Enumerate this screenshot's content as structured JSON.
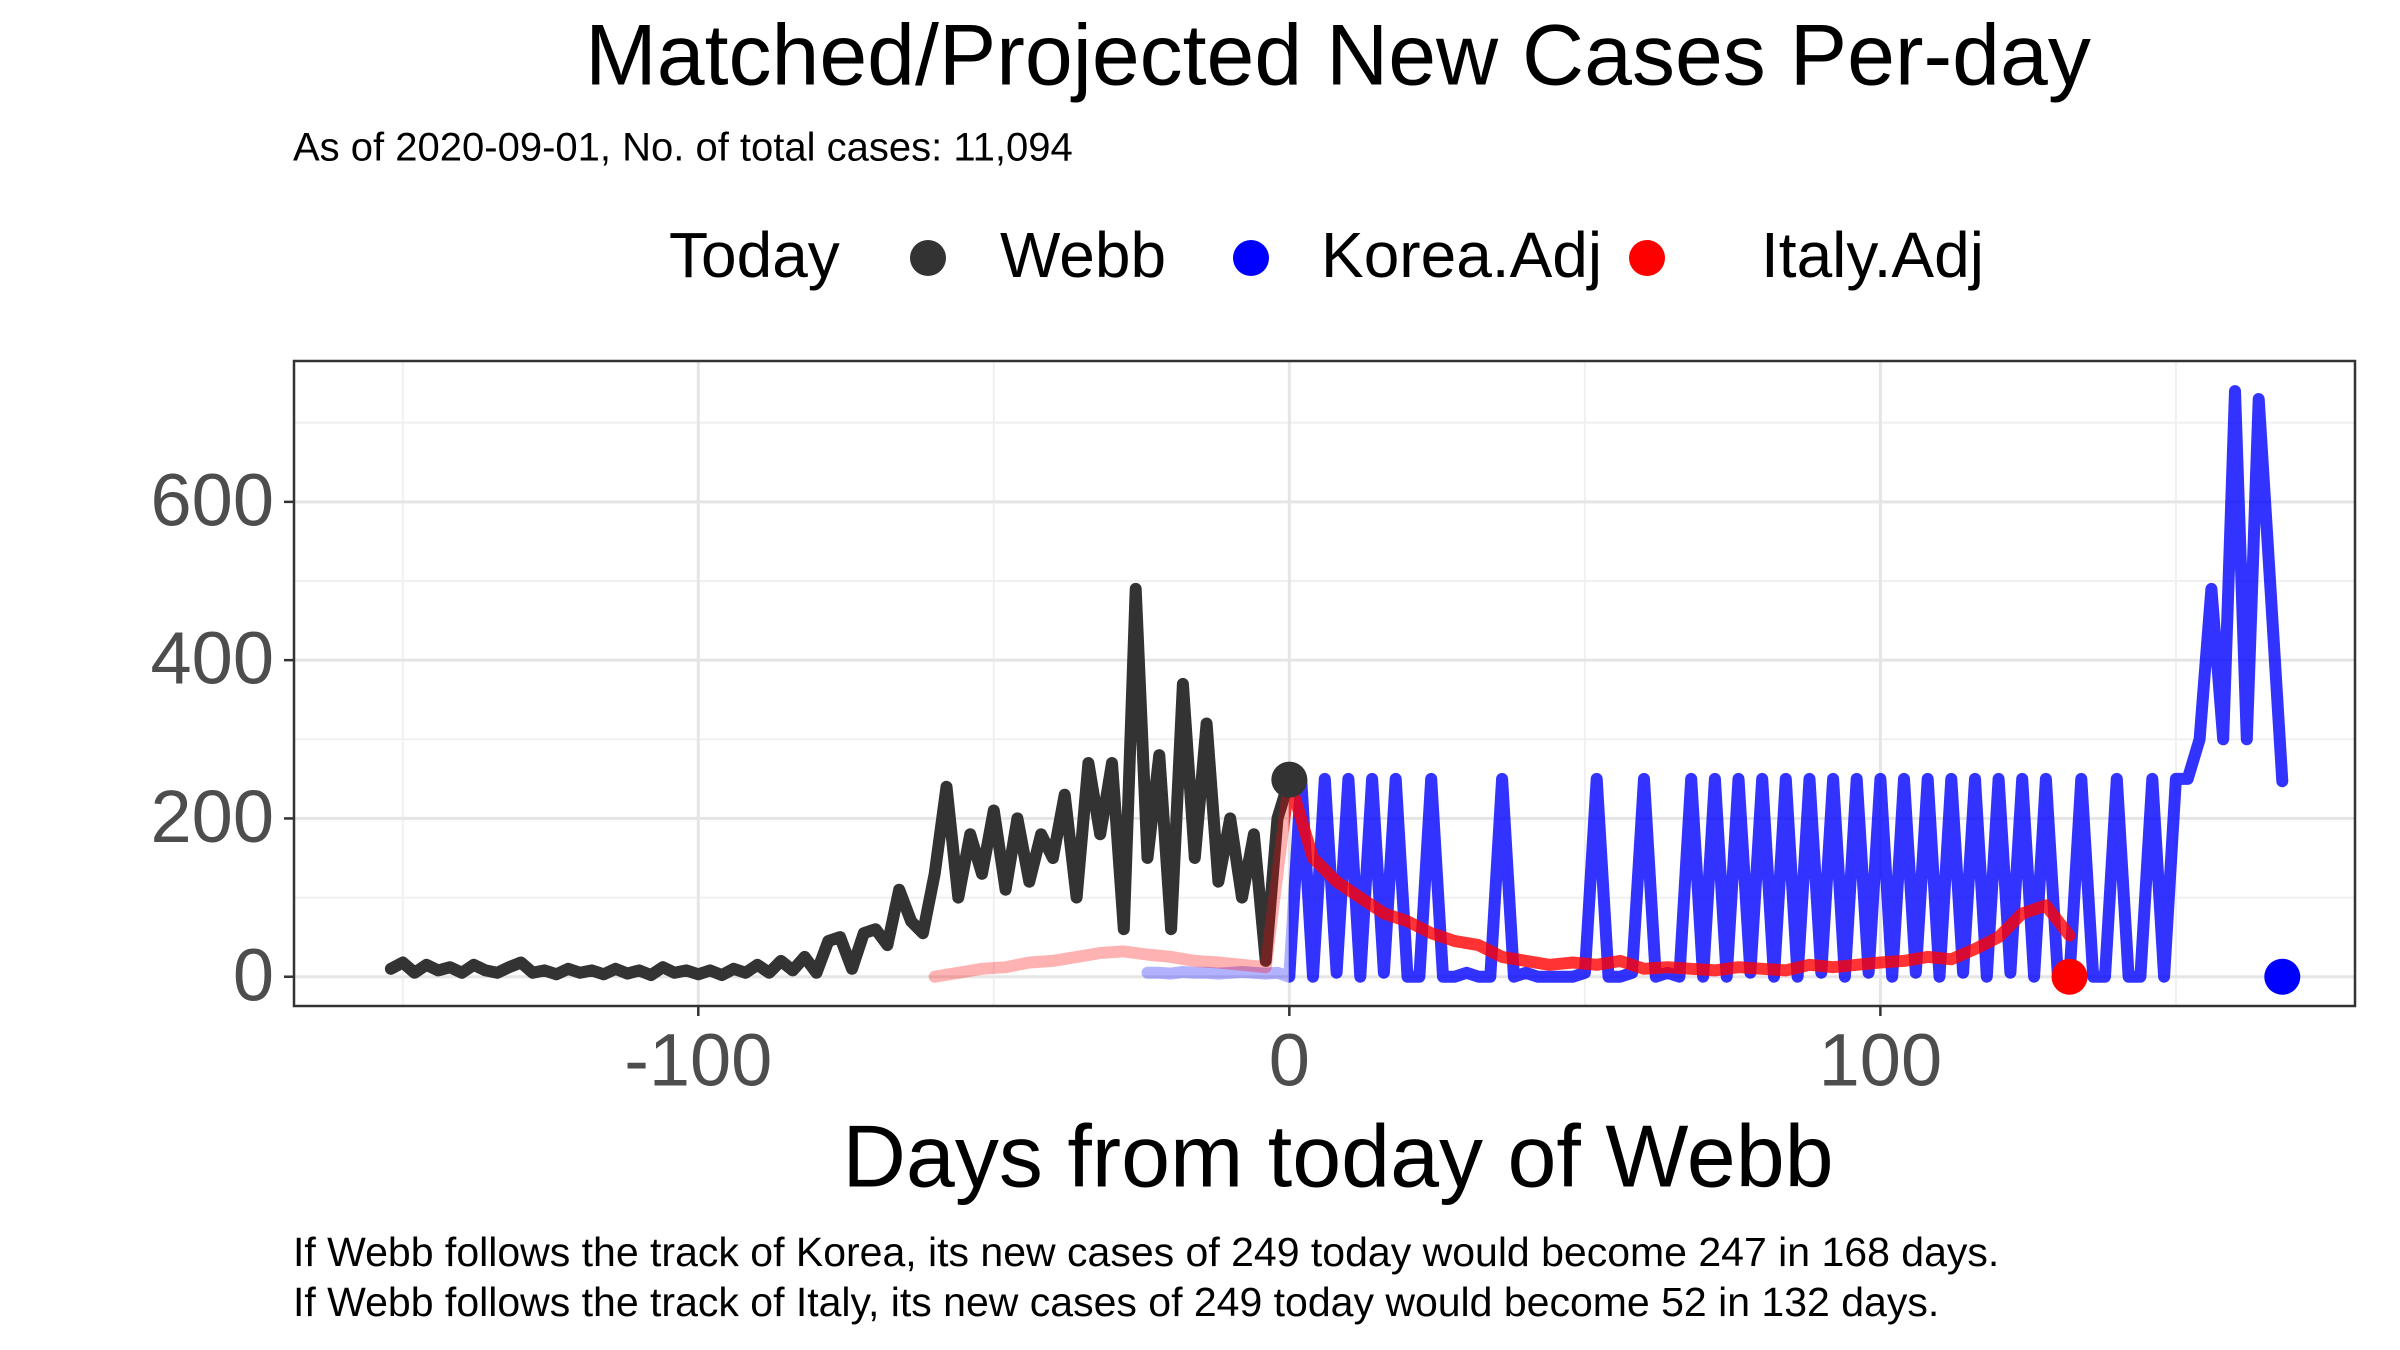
{
  "chart_data": {
    "type": "line",
    "title": "Matched/Projected New Cases Per-day",
    "subtitle": "As of 2020-09-01, No. of total cases: 11,094",
    "x_label": "Days from today of Webb",
    "notes": [
      "If Webb follows the track of Korea, its new cases of 249 today would become 247 in 168 days.",
      "If Webb follows the track of Italy, its new cases of 249 today would become 52 in 132 days."
    ],
    "xlim": [
      -168.4,
      180.3
    ],
    "ylim": [
      -37,
      778
    ],
    "xticks": [
      -100,
      0,
      100
    ],
    "yticks": [
      0,
      200,
      400,
      600
    ],
    "xminor": [
      -150,
      -50,
      50,
      150
    ],
    "yminor": [
      100,
      300,
      500,
      700
    ],
    "grid": true,
    "series": [
      {
        "name": "Webb",
        "color": "#333333",
        "x": [
          -152,
          -150,
          -148,
          -146,
          -144,
          -142,
          -140,
          -138,
          -136,
          -134,
          -132,
          -130,
          -128,
          -126,
          -124,
          -122,
          -120,
          -118,
          -116,
          -114,
          -112,
          -110,
          -108,
          -106,
          -104,
          -102,
          -100,
          -98,
          -96,
          -94,
          -92,
          -90,
          -88,
          -86,
          -84,
          -82,
          -80,
          -78,
          -76,
          -74,
          -72,
          -70,
          -68,
          -66,
          -64,
          -62,
          -60,
          -58,
          -56,
          -54,
          -52,
          -50,
          -48,
          -46,
          -44,
          -42,
          -40,
          -38,
          -36,
          -34,
          -32,
          -30,
          -28,
          -26,
          -24,
          -22,
          -20,
          -18,
          -16,
          -14,
          -12,
          -10,
          -8,
          -6,
          -4,
          -2,
          0
        ],
        "values": [
          10,
          18,
          5,
          15,
          8,
          12,
          5,
          15,
          8,
          5,
          12,
          18,
          5,
          8,
          3,
          10,
          5,
          8,
          3,
          10,
          4,
          8,
          2,
          12,
          5,
          8,
          3,
          8,
          2,
          10,
          5,
          15,
          5,
          20,
          8,
          25,
          5,
          45,
          50,
          10,
          55,
          60,
          40,
          110,
          70,
          55,
          130,
          240,
          100,
          180,
          130,
          210,
          110,
          200,
          120,
          180,
          150,
          230,
          100,
          270,
          180,
          270,
          60,
          490,
          150,
          280,
          60,
          370,
          150,
          320,
          120,
          200,
          100,
          180,
          20,
          200,
          249
        ]
      },
      {
        "name": "Korea.Adj",
        "color": "#0000ff",
        "x": [
          -24,
          -22,
          -20,
          -18,
          -16,
          -14,
          -12,
          -10,
          -8,
          -6,
          -4,
          -2,
          0,
          2,
          4,
          6,
          8,
          10,
          12,
          14,
          16,
          18,
          20,
          22,
          24,
          26,
          28,
          30,
          32,
          34,
          36,
          38,
          40,
          42,
          44,
          46,
          48,
          50,
          52,
          54,
          56,
          58,
          60,
          62,
          64,
          66,
          68,
          70,
          72,
          74,
          76,
          78,
          80,
          82,
          84,
          86,
          88,
          90,
          92,
          94,
          96,
          98,
          100,
          102,
          104,
          106,
          108,
          110,
          112,
          114,
          116,
          118,
          120,
          122,
          124,
          126,
          128,
          130,
          132,
          134,
          136,
          138,
          140,
          142,
          144,
          146,
          148,
          150,
          152,
          154,
          156,
          158,
          160,
          162,
          164,
          166,
          168
        ],
        "values": [
          5,
          5,
          4,
          6,
          5,
          5,
          4,
          5,
          6,
          5,
          4,
          5,
          0,
          250,
          0,
          250,
          5,
          250,
          0,
          250,
          5,
          250,
          0,
          0,
          250,
          0,
          0,
          5,
          0,
          0,
          250,
          0,
          5,
          0,
          0,
          0,
          0,
          5,
          250,
          0,
          0,
          5,
          250,
          0,
          5,
          0,
          250,
          0,
          250,
          0,
          250,
          5,
          250,
          0,
          250,
          0,
          250,
          5,
          250,
          0,
          250,
          5,
          250,
          0,
          250,
          5,
          250,
          0,
          250,
          5,
          250,
          0,
          250,
          5,
          250,
          0,
          250,
          5,
          0,
          250,
          0,
          0,
          250,
          0,
          0,
          250,
          0,
          250,
          250,
          300,
          490,
          300,
          740,
          300,
          730,
          490,
          247
        ]
      },
      {
        "name": "Italy.Adj",
        "color": "#ff0000",
        "x": [
          -60,
          -56,
          -52,
          -48,
          -44,
          -40,
          -36,
          -32,
          -28,
          -24,
          -20,
          -16,
          -12,
          -8,
          -4,
          0,
          4,
          8,
          12,
          16,
          20,
          24,
          28,
          32,
          36,
          40,
          44,
          48,
          52,
          56,
          60,
          64,
          68,
          72,
          76,
          80,
          84,
          88,
          92,
          96,
          100,
          104,
          108,
          112,
          116,
          120,
          124,
          128,
          132
        ],
        "values": [
          0,
          5,
          10,
          12,
          18,
          20,
          25,
          30,
          32,
          28,
          25,
          20,
          18,
          15,
          12,
          249,
          150,
          120,
          100,
          80,
          70,
          55,
          45,
          40,
          25,
          20,
          15,
          18,
          15,
          20,
          10,
          12,
          10,
          8,
          12,
          10,
          8,
          15,
          12,
          15,
          18,
          20,
          25,
          22,
          35,
          50,
          80,
          90,
          52
        ]
      }
    ],
    "today": {
      "label": "Today",
      "x": [
        0,
        168,
        132
      ],
      "values": [
        249,
        0,
        0
      ]
    }
  }
}
